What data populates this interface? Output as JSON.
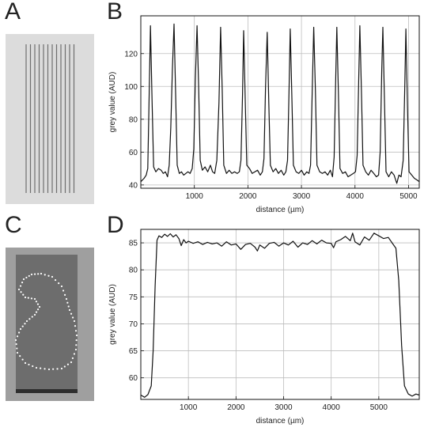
{
  "panels": {
    "a": {
      "letter": "A"
    },
    "b": {
      "letter": "B"
    },
    "c": {
      "letter": "C"
    },
    "d": {
      "letter": "D"
    }
  },
  "colors": {
    "background": "#ffffff",
    "line": "#111111",
    "grid": "#bdbdbd",
    "image_a_bg": "#dcdcdc",
    "image_a_lines": "#6e6e6e",
    "image_c_bg": "#9f9f9f",
    "image_c_sample": "#6d6d6d",
    "image_c_dots": "#ffffff"
  },
  "chart_data": [
    {
      "type": "line",
      "panel": "B",
      "xlabel": "distance (µm)",
      "ylabel": "grey value (AUD)",
      "xlim": [
        0,
        5200
      ],
      "ylim": [
        38,
        143
      ],
      "x_ticks": [
        1000,
        2000,
        3000,
        4000,
        5000
      ],
      "y_ticks": [
        40,
        60,
        80,
        100,
        120
      ],
      "grid": true,
      "peaks": {
        "positions": [
          180,
          620,
          1050,
          1490,
          1920,
          2360,
          2790,
          3230,
          3660,
          4090,
          4520,
          4950
        ],
        "heights": [
          137,
          138,
          137,
          136,
          134,
          133,
          135,
          136,
          136,
          137,
          136,
          135
        ],
        "baseline": 48
      },
      "x": [
        0,
        60,
        100,
        130,
        150,
        180,
        210,
        240,
        280,
        330,
        380,
        420,
        460,
        500,
        530,
        560,
        590,
        620,
        650,
        680,
        720,
        760,
        800,
        840,
        880,
        920,
        960,
        990,
        1020,
        1050,
        1080,
        1110,
        1150,
        1200,
        1250,
        1300,
        1340,
        1380,
        1420,
        1460,
        1490,
        1520,
        1550,
        1600,
        1650,
        1700,
        1750,
        1800,
        1840,
        1870,
        1900,
        1920,
        1950,
        1980,
        2030,
        2080,
        2130,
        2180,
        2230,
        2270,
        2300,
        2330,
        2360,
        2390,
        2420,
        2470,
        2520,
        2570,
        2620,
        2670,
        2710,
        2740,
        2770,
        2790,
        2820,
        2850,
        2900,
        2950,
        3000,
        3050,
        3100,
        3140,
        3170,
        3200,
        3230,
        3260,
        3290,
        3340,
        3390,
        3440,
        3490,
        3540,
        3580,
        3610,
        3640,
        3660,
        3690,
        3720,
        3770,
        3820,
        3870,
        3920,
        3970,
        4010,
        4040,
        4070,
        4090,
        4120,
        4150,
        4200,
        4250,
        4300,
        4350,
        4400,
        4440,
        4470,
        4500,
        4520,
        4550,
        4580,
        4630,
        4680,
        4730,
        4780,
        4820,
        4860,
        4900,
        4930,
        4950,
        4980,
        5010,
        5060,
        5110,
        5160,
        5200
      ],
      "y": [
        42,
        44,
        46,
        50,
        85,
        137,
        92,
        51,
        48,
        50,
        49,
        47,
        48,
        45,
        52,
        75,
        110,
        138,
        96,
        52,
        47,
        48,
        46,
        47,
        48,
        47,
        50,
        62,
        105,
        137,
        100,
        55,
        49,
        51,
        48,
        52,
        48,
        47,
        55,
        90,
        136,
        98,
        52,
        47,
        49,
        47,
        48,
        47,
        48,
        55,
        95,
        134,
        92,
        52,
        50,
        47,
        48,
        49,
        46,
        48,
        56,
        100,
        133,
        90,
        52,
        48,
        50,
        47,
        49,
        46,
        48,
        55,
        100,
        135,
        95,
        52,
        48,
        47,
        49,
        46,
        48,
        47,
        52,
        95,
        136,
        98,
        52,
        48,
        47,
        48,
        46,
        49,
        45,
        57,
        105,
        136,
        96,
        50,
        47,
        48,
        45,
        46,
        47,
        48,
        58,
        105,
        137,
        97,
        52,
        48,
        46,
        49,
        47,
        45,
        46,
        60,
        110,
        136,
        92,
        48,
        45,
        48,
        46,
        41,
        46,
        45,
        55,
        100,
        135,
        88,
        48,
        46,
        44,
        43,
        42
      ]
    },
    {
      "type": "line",
      "panel": "D",
      "xlabel": "distance (µm)",
      "ylabel": "grey value (AUD)",
      "xlim": [
        0,
        5850
      ],
      "ylim": [
        56,
        87.5
      ],
      "x_ticks": [
        1000,
        2000,
        3000,
        4000,
        5000
      ],
      "y_ticks": [
        60,
        65,
        70,
        75,
        80,
        85
      ],
      "grid": true,
      "x": [
        0,
        80,
        150,
        220,
        260,
        300,
        340,
        380,
        440,
        500,
        560,
        620,
        680,
        740,
        800,
        850,
        900,
        950,
        1000,
        1100,
        1200,
        1300,
        1400,
        1500,
        1600,
        1700,
        1800,
        1900,
        2000,
        2100,
        2200,
        2300,
        2400,
        2450,
        2500,
        2600,
        2700,
        2800,
        2900,
        3000,
        3100,
        3200,
        3300,
        3400,
        3500,
        3600,
        3700,
        3800,
        3900,
        4000,
        4050,
        4100,
        4200,
        4300,
        4400,
        4450,
        4500,
        4600,
        4700,
        4800,
        4900,
        5000,
        5100,
        5200,
        5280,
        5360,
        5420,
        5480,
        5540,
        5620,
        5700,
        5780,
        5850
      ],
      "y": [
        56.8,
        56.4,
        56.9,
        58.5,
        65,
        77,
        85.5,
        86.3,
        86.0,
        86.6,
        86.2,
        86.7,
        86.1,
        86.5,
        85.8,
        84.5,
        85.6,
        85.0,
        85.3,
        84.9,
        85.2,
        84.7,
        85.1,
        84.8,
        85.0,
        84.4,
        85.2,
        84.6,
        84.8,
        83.8,
        84.7,
        84.9,
        84.2,
        83.5,
        84.6,
        84.0,
        84.9,
        85.1,
        84.4,
        85.0,
        84.6,
        85.3,
        84.2,
        85.0,
        84.7,
        85.4,
        84.8,
        85.5,
        85.0,
        84.9,
        84.1,
        85.2,
        85.6,
        86.2,
        85.4,
        86.8,
        85.2,
        84.6,
        86.1,
        85.5,
        86.8,
        86.3,
        85.8,
        86.0,
        85.0,
        84.0,
        78,
        66,
        58.5,
        57.0,
        56.6,
        57.0,
        56.8
      ]
    }
  ]
}
